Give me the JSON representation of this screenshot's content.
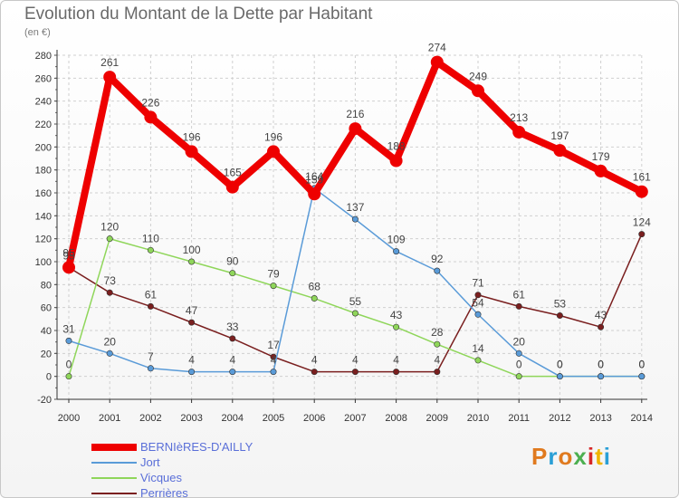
{
  "header": {
    "title": "Evolution du Montant de la Dette par Habitant",
    "subtitle": "(en €)"
  },
  "logo": {
    "text": "Proxiti",
    "colors": [
      "#e07a1f",
      "#2a9fd6",
      "#e07a1f",
      "#4caf50",
      "#d62728",
      "#f0b400",
      "#2a9fd6"
    ]
  },
  "chart_data": {
    "type": "line",
    "x": [
      "2000",
      "2001",
      "2002",
      "2003",
      "2004",
      "2005",
      "2006",
      "2007",
      "2008",
      "2009",
      "2010",
      "2011",
      "2012",
      "2013",
      "2014"
    ],
    "ylim": [
      -20,
      280
    ],
    "yticks": [
      -20,
      0,
      20,
      40,
      60,
      80,
      100,
      120,
      140,
      160,
      180,
      200,
      220,
      240,
      260,
      280
    ],
    "grid": true,
    "legend_position": "bottom-left",
    "series": [
      {
        "name": "Perrières",
        "color": "#7a1f1f",
        "labels": [
          "95",
          "73",
          "61",
          "47",
          "33",
          "17",
          "4",
          "4",
          "4",
          "4",
          "71",
          "61",
          "53",
          "43",
          "124"
        ],
        "values": [
          95,
          73,
          61,
          47,
          33,
          17,
          4,
          4,
          4,
          4,
          71,
          61,
          53,
          43,
          124
        ]
      },
      {
        "name": "Vicques",
        "color": "#8fd65a",
        "labels": [
          "0",
          "120",
          "110",
          "100",
          "90",
          "79",
          "68",
          "55",
          "43",
          "28",
          "14",
          "0",
          "0",
          "0",
          "0"
        ],
        "values": [
          0,
          120,
          110,
          100,
          90,
          79,
          68,
          55,
          43,
          28,
          14,
          0,
          0,
          0,
          0
        ]
      },
      {
        "name": "Jort",
        "color": "#5a9bd8",
        "labels": [
          "31",
          "20",
          "7",
          "4",
          "4",
          "4",
          "164",
          "137",
          "109",
          "92",
          "54",
          "20",
          "0",
          "0",
          "0"
        ],
        "values": [
          31,
          20,
          7,
          4,
          4,
          4,
          164,
          137,
          109,
          92,
          54,
          20,
          0,
          0,
          0
        ]
      },
      {
        "name": "BERNIèRES-D'AILLY",
        "color": "#ee0000",
        "labels": [
          "95",
          "261",
          "226",
          "196",
          "165",
          "196",
          "159",
          "216",
          "188",
          "274",
          "249",
          "213",
          "197",
          "179",
          "161"
        ],
        "values": [
          95,
          261,
          226,
          196,
          165,
          196,
          159,
          216,
          188,
          274,
          249,
          213,
          197,
          179,
          161
        ]
      }
    ],
    "legend_order": [
      "BERNIèRES-D'AILLY",
      "Jort",
      "Vicques",
      "Perrières"
    ]
  }
}
